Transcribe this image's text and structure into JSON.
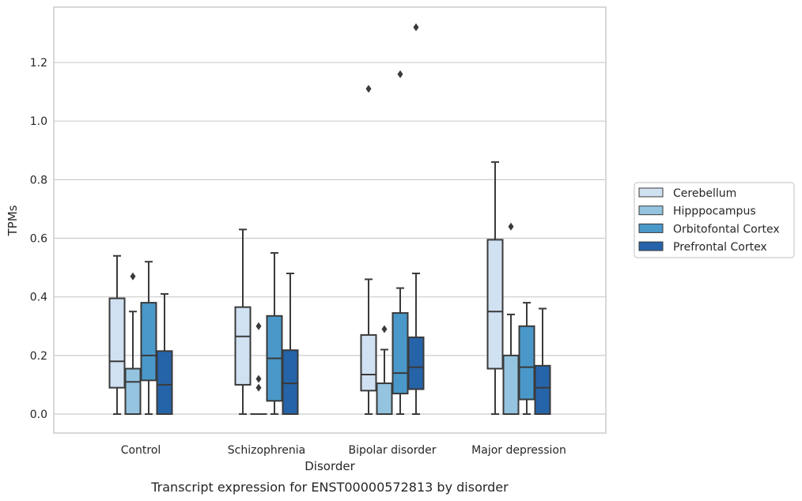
{
  "caption": "Transcript expression for ENST00000572813 by disorder",
  "chart_data": {
    "type": "box",
    "xlabel": "Disorder",
    "ylabel": "TPMs",
    "ylim": [
      -0.065,
      1.385
    ],
    "yticks": [
      0.0,
      0.2,
      0.4,
      0.6,
      0.8,
      1.0,
      1.2
    ],
    "ytick_labels": [
      "0.0",
      "0.2",
      "0.4",
      "0.6",
      "0.8",
      "1.0",
      "1.2"
    ],
    "grid": "horizontal",
    "legend_position": "right",
    "categories": [
      "Control",
      "Schizophrenia",
      "Bipolar disorder",
      "Major depression"
    ],
    "series": [
      {
        "name": "Cerebellum",
        "color": "#d0e1f2",
        "boxes": [
          {
            "whislo": 0.0,
            "q1": 0.09,
            "med": 0.18,
            "q3": 0.395,
            "whishi": 0.54,
            "fliers": []
          },
          {
            "whislo": 0.0,
            "q1": 0.1,
            "med": 0.265,
            "q3": 0.365,
            "whishi": 0.63,
            "fliers": []
          },
          {
            "whislo": 0.0,
            "q1": 0.08,
            "med": 0.135,
            "q3": 0.27,
            "whishi": 0.46,
            "fliers": [
              1.11
            ]
          },
          {
            "whislo": 0.0,
            "q1": 0.155,
            "med": 0.35,
            "q3": 0.595,
            "whishi": 0.86,
            "fliers": []
          }
        ]
      },
      {
        "name": "Hipppocampus",
        "color": "#94c4df",
        "boxes": [
          {
            "whislo": 0.0,
            "q1": 0.0,
            "med": 0.11,
            "q3": 0.155,
            "whishi": 0.35,
            "fliers": [
              0.47
            ]
          },
          {
            "whislo": 0.0,
            "q1": 0.0,
            "med": 0.0,
            "q3": 0.0,
            "whishi": 0.0,
            "fliers": [
              0.3,
              0.12,
              0.09
            ]
          },
          {
            "whislo": 0.0,
            "q1": 0.0,
            "med": 0.0,
            "q3": 0.105,
            "whishi": 0.22,
            "fliers": [
              0.29
            ]
          },
          {
            "whislo": 0.0,
            "q1": 0.0,
            "med": 0.0,
            "q3": 0.2,
            "whishi": 0.34,
            "fliers": [
              0.64
            ]
          }
        ]
      },
      {
        "name": "Orbitofontal Cortex",
        "color": "#4a98c9",
        "boxes": [
          {
            "whislo": 0.0,
            "q1": 0.115,
            "med": 0.2,
            "q3": 0.38,
            "whishi": 0.52,
            "fliers": []
          },
          {
            "whislo": 0.0,
            "q1": 0.045,
            "med": 0.19,
            "q3": 0.335,
            "whishi": 0.55,
            "fliers": []
          },
          {
            "whislo": 0.0,
            "q1": 0.07,
            "med": 0.14,
            "q3": 0.345,
            "whishi": 0.43,
            "fliers": [
              1.16
            ]
          },
          {
            "whislo": 0.0,
            "q1": 0.05,
            "med": 0.16,
            "q3": 0.3,
            "whishi": 0.38,
            "fliers": []
          }
        ]
      },
      {
        "name": "Prefrontal Cortex",
        "color": "#2664a9",
        "boxes": [
          {
            "whislo": 0.0,
            "q1": 0.0,
            "med": 0.1,
            "q3": 0.215,
            "whishi": 0.41,
            "fliers": []
          },
          {
            "whislo": 0.0,
            "q1": 0.0,
            "med": 0.105,
            "q3": 0.218,
            "whishi": 0.48,
            "fliers": []
          },
          {
            "whislo": 0.0,
            "q1": 0.085,
            "med": 0.16,
            "q3": 0.262,
            "whishi": 0.48,
            "fliers": [
              1.32
            ]
          },
          {
            "whislo": 0.0,
            "q1": 0.0,
            "med": 0.09,
            "q3": 0.165,
            "whishi": 0.36,
            "fliers": []
          }
        ]
      }
    ]
  }
}
